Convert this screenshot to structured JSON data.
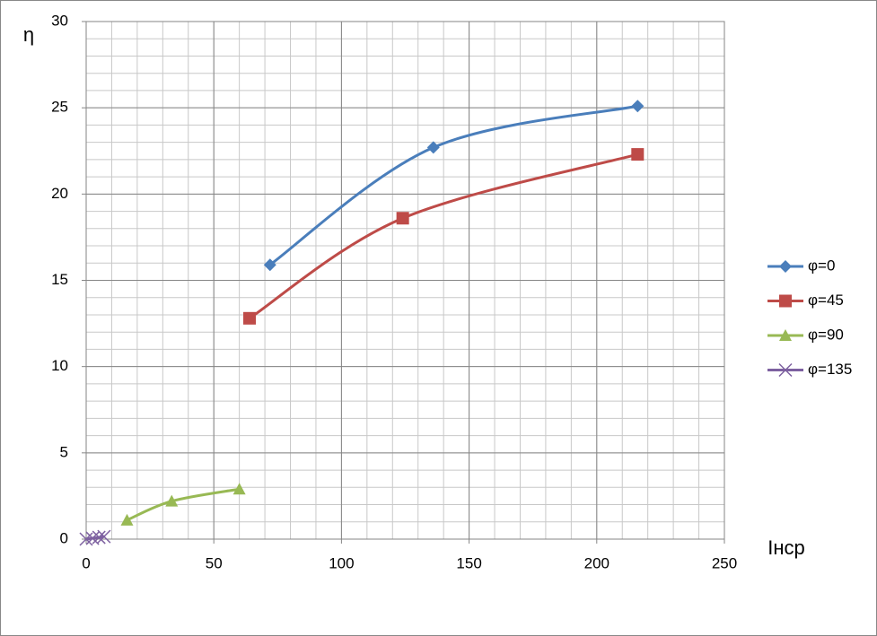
{
  "chart_data": {
    "type": "scatter-smooth",
    "y_label": "η",
    "x_label": "Iнср",
    "xlim": [
      0,
      250
    ],
    "xticks": [
      0,
      50,
      100,
      150,
      200,
      250
    ],
    "ylim": [
      0,
      30
    ],
    "yticks": [
      0,
      5,
      10,
      15,
      20,
      25,
      30
    ],
    "grid": true,
    "minor_grid": {
      "x": 10,
      "y": 1
    },
    "legend": "right",
    "series": [
      {
        "name": "φ=0",
        "color": "#4a7ebb",
        "marker": "diamond",
        "x": [
          72,
          136,
          216
        ],
        "values": [
          15.9,
          22.7,
          25.1
        ]
      },
      {
        "name": "φ=45",
        "color": "#be4b48",
        "marker": "square",
        "x": [
          64,
          124,
          216
        ],
        "values": [
          12.8,
          18.6,
          22.3
        ]
      },
      {
        "name": "φ=90",
        "color": "#98b954",
        "marker": "triangle",
        "x": [
          16,
          33.5,
          60
        ],
        "values": [
          1.1,
          2.2,
          2.9
        ]
      },
      {
        "name": "φ=135",
        "color": "#7d60a0",
        "marker": "cross",
        "x": [
          0,
          2.5,
          5,
          7
        ],
        "values": [
          0,
          0.05,
          0.1,
          0.15
        ]
      }
    ]
  }
}
